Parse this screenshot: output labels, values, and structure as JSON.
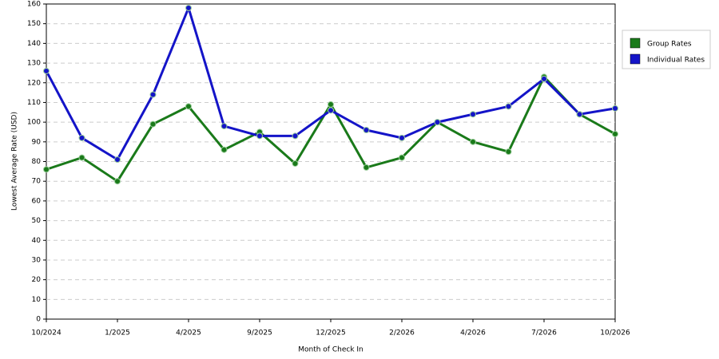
{
  "chart_data": {
    "type": "line",
    "x_label": "Month of Check In",
    "y_label": "Lowest Average Rate (USD)",
    "categories": [
      "10/2024",
      null,
      "1/2025",
      null,
      "4/2025",
      null,
      "9/2025",
      null,
      "12/2025",
      null,
      "2/2026",
      null,
      "4/2026",
      null,
      "7/2026",
      null,
      "10/2026"
    ],
    "series": [
      {
        "name": "Group Rates",
        "color": "#1a7a1a",
        "values": [
          76,
          82,
          70,
          99,
          108,
          86,
          95,
          79,
          109,
          77,
          82,
          100,
          90,
          85,
          123,
          104,
          94
        ]
      },
      {
        "name": "Individual Rates",
        "color": "#1414c8",
        "values": [
          126,
          92,
          81,
          114,
          158,
          98,
          93,
          93,
          106,
          96,
          92,
          100,
          104,
          108,
          122,
          104,
          107
        ]
      }
    ],
    "ylim": [
      0,
      160
    ],
    "yticks": [
      0,
      10,
      20,
      30,
      40,
      50,
      60,
      70,
      80,
      90,
      100,
      110,
      120,
      130,
      140,
      150,
      160
    ],
    "grid": true,
    "legend": "right"
  }
}
